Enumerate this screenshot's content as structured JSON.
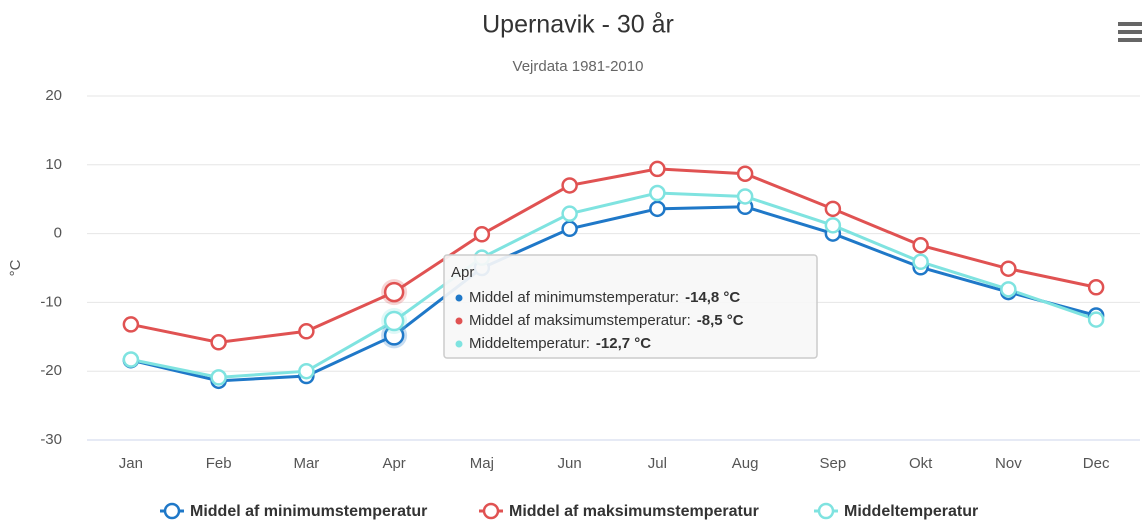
{
  "chart_data": {
    "type": "line",
    "title": "Upernavik - 30 år",
    "subtitle": "Vejrdata 1981-2010",
    "y_label": "°C",
    "categories": [
      "Jan",
      "Feb",
      "Mar",
      "Apr",
      "Maj",
      "Jun",
      "Jul",
      "Aug",
      "Sep",
      "Okt",
      "Nov",
      "Dec"
    ],
    "series": [
      {
        "name": "Middel af minimumstemperatur",
        "color": "#1f78c8",
        "values": [
          -18.4,
          -21.4,
          -20.7,
          -14.8,
          -5.0,
          0.7,
          3.6,
          3.9,
          0.0,
          -4.9,
          -8.5,
          -11.9
        ]
      },
      {
        "name": "Middel af maksimumstemperatur",
        "color": "#e05252",
        "values": [
          -13.2,
          -15.8,
          -14.2,
          -8.5,
          -0.1,
          7.0,
          9.4,
          8.7,
          3.6,
          -1.7,
          -5.1,
          -7.8
        ]
      },
      {
        "name": "Middeltemperatur",
        "color": "#7fe3e0",
        "values": [
          -18.3,
          -20.9,
          -20.0,
          -12.7,
          -3.5,
          2.9,
          5.9,
          5.4,
          1.2,
          -4.1,
          -8.1,
          -12.5
        ]
      }
    ],
    "ylim": [
      -30,
      20
    ],
    "yticks": [
      -30,
      -20,
      -10,
      0,
      10,
      20
    ],
    "grid": true,
    "legend": "bottom",
    "hover_index": 3,
    "tooltip": {
      "items": [
        {
          "label": "Middel af minimumstemperatur:",
          "value": "-14,8 °C"
        },
        {
          "label": "Middel af maksimumstemperatur:",
          "value": "-8,5 °C"
        },
        {
          "label": "Middeltemperatur:",
          "value": "-12,7 °C"
        }
      ]
    }
  }
}
